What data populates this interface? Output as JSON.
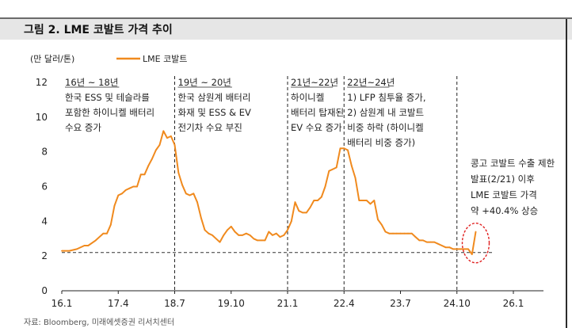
{
  "title": "그림 2. LME 코발트 가격 추이",
  "source": "자료: Bloomberg, 미래에셋증권 리서치센터",
  "chart_data": {
    "type": "line",
    "unit_label": "(만 달러/톤)",
    "series": [
      {
        "name": "LME 코발트",
        "color": "#f08a1e",
        "points": [
          [
            "2016-01",
            2.3
          ],
          [
            "2016-03",
            2.3
          ],
          [
            "2016-05",
            2.4
          ],
          [
            "2016-07",
            2.6
          ],
          [
            "2016-08",
            2.6
          ],
          [
            "2016-10",
            2.9
          ],
          [
            "2016-12",
            3.3
          ],
          [
            "2017-01",
            3.3
          ],
          [
            "2017-02",
            3.8
          ],
          [
            "2017-03",
            4.9
          ],
          [
            "2017-04",
            5.5
          ],
          [
            "2017-05",
            5.6
          ],
          [
            "2017-06",
            5.8
          ],
          [
            "2017-07",
            5.9
          ],
          [
            "2017-08",
            6.0
          ],
          [
            "2017-09",
            6.0
          ],
          [
            "2017-10",
            6.7
          ],
          [
            "2017-11",
            6.7
          ],
          [
            "2017-12",
            7.2
          ],
          [
            "2018-01",
            7.6
          ],
          [
            "2018-02",
            8.1
          ],
          [
            "2018-03",
            8.4
          ],
          [
            "2018-04",
            9.2
          ],
          [
            "2018-05",
            8.8
          ],
          [
            "2018-06",
            8.9
          ],
          [
            "2018-07",
            8.4
          ],
          [
            "2018-08",
            6.8
          ],
          [
            "2018-09",
            6.1
          ],
          [
            "2018-10",
            5.6
          ],
          [
            "2018-11",
            5.5
          ],
          [
            "2018-12",
            5.6
          ],
          [
            "2019-01",
            5.1
          ],
          [
            "2019-02",
            4.2
          ],
          [
            "2019-03",
            3.5
          ],
          [
            "2019-04",
            3.3
          ],
          [
            "2019-05",
            3.2
          ],
          [
            "2019-06",
            3.0
          ],
          [
            "2019-07",
            2.8
          ],
          [
            "2019-08",
            3.2
          ],
          [
            "2019-09",
            3.5
          ],
          [
            "2019-10",
            3.7
          ],
          [
            "2019-11",
            3.4
          ],
          [
            "2019-12",
            3.2
          ],
          [
            "2020-01",
            3.2
          ],
          [
            "2020-02",
            3.3
          ],
          [
            "2020-03",
            3.2
          ],
          [
            "2020-04",
            3.0
          ],
          [
            "2020-05",
            2.9
          ],
          [
            "2020-06",
            2.9
          ],
          [
            "2020-07",
            2.9
          ],
          [
            "2020-08",
            3.4
          ],
          [
            "2020-09",
            3.2
          ],
          [
            "2020-10",
            3.3
          ],
          [
            "2020-11",
            3.1
          ],
          [
            "2020-12",
            3.2
          ],
          [
            "2021-01",
            3.5
          ],
          [
            "2021-02",
            4.0
          ],
          [
            "2021-03",
            5.1
          ],
          [
            "2021-04",
            4.6
          ],
          [
            "2021-05",
            4.5
          ],
          [
            "2021-06",
            4.5
          ],
          [
            "2021-07",
            4.8
          ],
          [
            "2021-08",
            5.2
          ],
          [
            "2021-09",
            5.2
          ],
          [
            "2021-10",
            5.4
          ],
          [
            "2021-11",
            6.0
          ],
          [
            "2021-12",
            6.9
          ],
          [
            "2022-01",
            7.0
          ],
          [
            "2022-02",
            7.1
          ],
          [
            "2022-03",
            8.2
          ],
          [
            "2022-04",
            8.2
          ],
          [
            "2022-05",
            8.1
          ],
          [
            "2022-06",
            7.2
          ],
          [
            "2022-07",
            6.5
          ],
          [
            "2022-08",
            5.2
          ],
          [
            "2022-09",
            5.2
          ],
          [
            "2022-10",
            5.2
          ],
          [
            "2022-11",
            5.0
          ],
          [
            "2022-12",
            5.2
          ],
          [
            "2023-01",
            4.1
          ],
          [
            "2023-02",
            3.8
          ],
          [
            "2023-03",
            3.4
          ],
          [
            "2023-04",
            3.3
          ],
          [
            "2023-05",
            3.3
          ],
          [
            "2023-06",
            3.3
          ],
          [
            "2023-07",
            3.3
          ],
          [
            "2023-08",
            3.3
          ],
          [
            "2023-09",
            3.3
          ],
          [
            "2023-10",
            3.3
          ],
          [
            "2023-11",
            3.1
          ],
          [
            "2023-12",
            2.9
          ],
          [
            "2024-01",
            2.9
          ],
          [
            "2024-02",
            2.8
          ],
          [
            "2024-03",
            2.8
          ],
          [
            "2024-04",
            2.8
          ],
          [
            "2024-05",
            2.7
          ],
          [
            "2024-06",
            2.6
          ],
          [
            "2024-07",
            2.5
          ],
          [
            "2024-08",
            2.5
          ],
          [
            "2024-09",
            2.4
          ],
          [
            "2024-10",
            2.4
          ],
          [
            "2024-11",
            2.4
          ],
          [
            "2024-12",
            2.4
          ],
          [
            "2025-01",
            2.4
          ],
          [
            "2025-02",
            2.1
          ],
          [
            "2025-03",
            3.4
          ]
        ]
      }
    ],
    "x_ticks": [
      "16.1",
      "17.4",
      "18.7",
      "19.10",
      "21.1",
      "22.4",
      "23.7",
      "24.10",
      "26.1"
    ],
    "y_ticks": [
      "0",
      "2",
      "4",
      "6",
      "8",
      "10",
      "12"
    ],
    "ylim": [
      0,
      12
    ],
    "xlim": [
      "2016-01",
      "2026-01"
    ],
    "reference_line": {
      "value": 2.2,
      "style": "dashed"
    },
    "period_dividers": [
      "2018-07",
      "2021-01",
      "2022-04",
      "2024-10"
    ],
    "period_annotations": [
      {
        "at": "2016-01",
        "lines": [
          "16년 ~ 18년",
          "한국 ESS 및 테슬라를",
          "포함한 하이니켈 배터리",
          "수요 증가"
        ]
      },
      {
        "at": "2018-07",
        "lines": [
          "19년 ~ 20년",
          "한국 삼원계 배터리",
          "화재 및 ESS & EV",
          "전기차 수요 부진"
        ]
      },
      {
        "at": "2021-01",
        "lines": [
          "21년~22년",
          "하이니켈",
          "배터리 탑재된",
          "EV 수요 증가"
        ]
      },
      {
        "at": "2022-04",
        "lines": [
          "22년~24년",
          "1) LFP 침투율 증가,",
          "2) 삼원계 내 코발트",
          "비중 하락 (하이니켈",
          "배터리 비중 증가)"
        ]
      }
    ],
    "callout": [
      "콩고 코발트 수출 제한",
      "발표(2/21) 이후",
      "LME 코발트 가격",
      "약 +40.4% 상승"
    ],
    "legend_position": "top"
  }
}
